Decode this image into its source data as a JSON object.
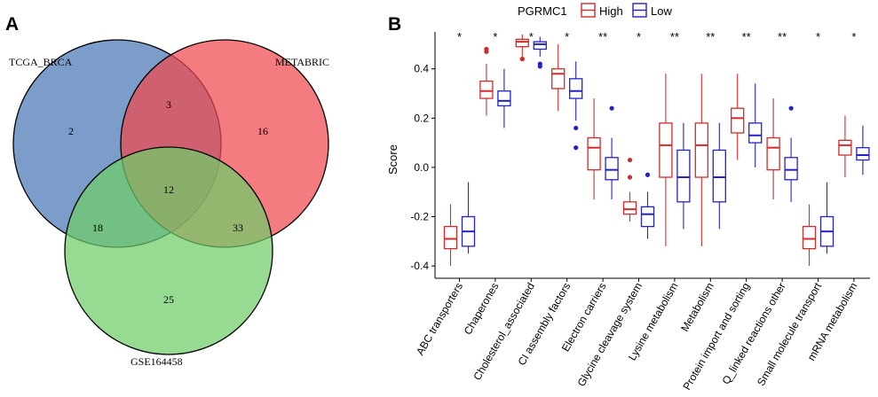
{
  "panels": {
    "a": "A",
    "b": "B"
  },
  "venn": {
    "sets": [
      {
        "name": "TCGA_BRCA",
        "color": "#4a77b4"
      },
      {
        "name": "METABRIC",
        "color": "#f0484e"
      },
      {
        "name": "GSE164458",
        "color": "#6fcd6a"
      }
    ],
    "regions": {
      "tcga_only": "2",
      "metabric_only": "16",
      "gse_only": "25",
      "tcga_metabric": "3",
      "tcga_gse": "18",
      "metabric_gse": "33",
      "all_three": "12"
    }
  },
  "chart_data": {
    "type": "boxplot",
    "ylabel": "Score",
    "ylim": [
      -0.45,
      0.55
    ],
    "yticks": [
      -0.4,
      -0.2,
      0.0,
      0.2,
      0.4
    ],
    "ytick_labels": [
      "-0.4",
      "-0.2",
      "0.0",
      "0.2",
      "0.4"
    ],
    "legend": {
      "title": "PGRMC1",
      "placement": "top",
      "entries": [
        {
          "name": "High",
          "color": "#d22b2b"
        },
        {
          "name": "Low",
          "color": "#2222c8"
        }
      ]
    },
    "categories": [
      "ABC transporters",
      "Chaperones",
      "Cholesterol_associated",
      "CI assembly factors",
      "Electron carriers",
      "Glycine cleavage system",
      "Lysine metabolism",
      "Metabolism",
      "Protein import and sorting",
      "Q_linked reactions other",
      "Small molecule transport",
      "mRNA metabolism"
    ],
    "significance": [
      "*",
      "*",
      "*",
      "*",
      "**",
      "*",
      "**",
      "**",
      "**",
      "**",
      "*",
      "*"
    ],
    "series": [
      {
        "name": "High",
        "boxes": [
          {
            "min": -0.4,
            "q1": -0.33,
            "median": -0.29,
            "q3": -0.24,
            "max": -0.15,
            "outliers": []
          },
          {
            "min": 0.21,
            "q1": 0.28,
            "median": 0.31,
            "q3": 0.35,
            "max": 0.42,
            "outliers": [
              0.47,
              0.48
            ]
          },
          {
            "min": 0.45,
            "q1": 0.49,
            "median": 0.51,
            "q3": 0.52,
            "max": 0.54,
            "outliers": [
              0.44,
              0.44
            ]
          },
          {
            "min": 0.23,
            "q1": 0.32,
            "median": 0.38,
            "q3": 0.4,
            "max": 0.5,
            "outliers": []
          },
          {
            "min": -0.13,
            "q1": -0.01,
            "median": 0.08,
            "q3": 0.12,
            "max": 0.28,
            "outliers": []
          },
          {
            "min": -0.22,
            "q1": -0.19,
            "median": -0.17,
            "q3": -0.14,
            "max": -0.1,
            "outliers": [
              0.03,
              -0.04
            ]
          },
          {
            "min": -0.32,
            "q1": -0.04,
            "median": 0.09,
            "q3": 0.18,
            "max": 0.38,
            "outliers": []
          },
          {
            "min": -0.32,
            "q1": -0.04,
            "median": 0.09,
            "q3": 0.18,
            "max": 0.38,
            "outliers": []
          },
          {
            "min": 0.03,
            "q1": 0.14,
            "median": 0.2,
            "q3": 0.24,
            "max": 0.38,
            "outliers": []
          },
          {
            "min": -0.13,
            "q1": -0.01,
            "median": 0.08,
            "q3": 0.12,
            "max": 0.28,
            "outliers": []
          },
          {
            "min": -0.4,
            "q1": -0.33,
            "median": -0.29,
            "q3": -0.24,
            "max": -0.15,
            "outliers": []
          },
          {
            "min": -0.04,
            "q1": 0.05,
            "median": 0.09,
            "q3": 0.11,
            "max": 0.21,
            "outliers": []
          }
        ]
      },
      {
        "name": "Low",
        "boxes": [
          {
            "min": -0.35,
            "q1": -0.32,
            "median": -0.26,
            "q3": -0.2,
            "max": -0.06,
            "outliers": []
          },
          {
            "min": 0.16,
            "q1": 0.25,
            "median": 0.27,
            "q3": 0.31,
            "max": 0.4,
            "outliers": []
          },
          {
            "min": 0.45,
            "q1": 0.48,
            "median": 0.5,
            "q3": 0.51,
            "max": 0.53,
            "outliers": [
              0.42,
              0.41
            ]
          },
          {
            "min": 0.19,
            "q1": 0.28,
            "median": 0.31,
            "q3": 0.36,
            "max": 0.43,
            "outliers": [
              0.16,
              0.08
            ]
          },
          {
            "min": -0.13,
            "q1": -0.05,
            "median": -0.01,
            "q3": 0.04,
            "max": 0.12,
            "outliers": [
              0.24
            ]
          },
          {
            "min": -0.29,
            "q1": -0.24,
            "median": -0.19,
            "q3": -0.16,
            "max": -0.1,
            "outliers": [
              -0.03
            ]
          },
          {
            "min": -0.25,
            "q1": -0.14,
            "median": -0.04,
            "q3": 0.07,
            "max": 0.18,
            "outliers": []
          },
          {
            "min": -0.25,
            "q1": -0.14,
            "median": -0.04,
            "q3": 0.07,
            "max": 0.18,
            "outliers": []
          },
          {
            "min": 0.0,
            "q1": 0.1,
            "median": 0.13,
            "q3": 0.18,
            "max": 0.34,
            "outliers": []
          },
          {
            "min": -0.14,
            "q1": -0.05,
            "median": -0.01,
            "q3": 0.04,
            "max": 0.12,
            "outliers": [
              0.24
            ]
          },
          {
            "min": -0.35,
            "q1": -0.32,
            "median": -0.26,
            "q3": -0.2,
            "max": -0.06,
            "outliers": []
          },
          {
            "min": -0.03,
            "q1": 0.03,
            "median": 0.05,
            "q3": 0.08,
            "max": 0.17,
            "outliers": []
          }
        ]
      }
    ]
  }
}
